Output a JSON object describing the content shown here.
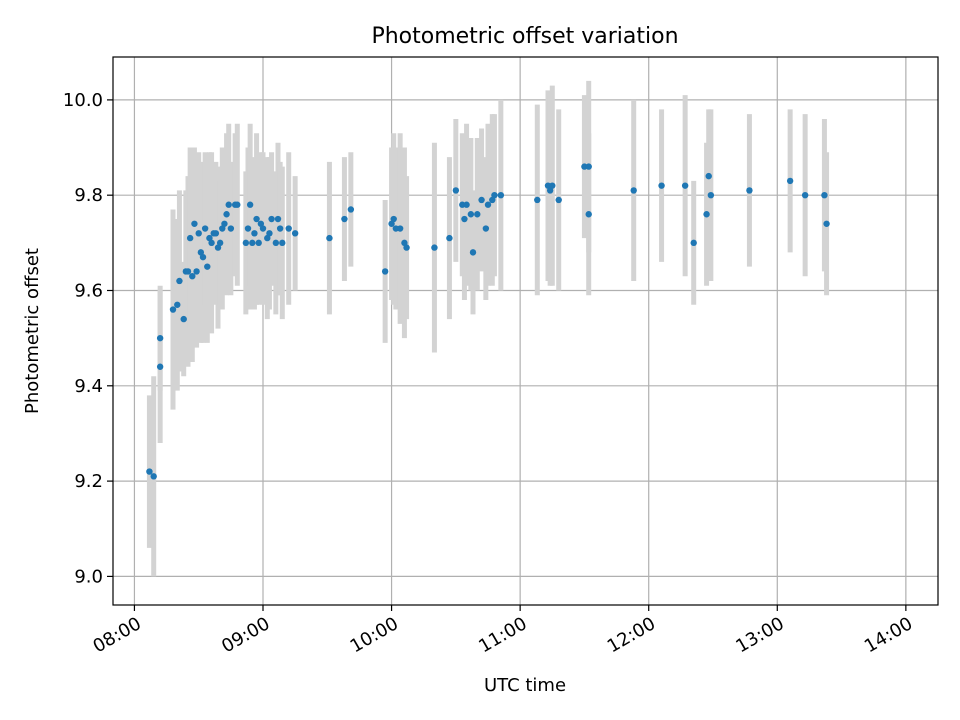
{
  "chart_data": {
    "type": "scatter",
    "title": "Photometric offset variation",
    "xlabel": "UTC time",
    "ylabel": "Photometric offset",
    "x_unit": "time",
    "xlim": [
      "07:50",
      "14:15"
    ],
    "ylim": [
      8.94,
      10.09
    ],
    "x_ticks": [
      "08:00",
      "09:00",
      "10:00",
      "11:00",
      "12:00",
      "13:00",
      "14:00"
    ],
    "y_ticks": [
      9.0,
      9.2,
      9.4,
      9.6,
      9.8,
      10.0
    ],
    "y_tick_labels": [
      "9.0",
      "9.2",
      "9.4",
      "9.6",
      "9.8",
      "10.0"
    ],
    "grid": true,
    "colors": {
      "marker": "#1f77b4",
      "errorbar": "#d3d3d3"
    },
    "series": [
      {
        "points": [
          {
            "x": "08:07",
            "y": 9.22,
            "err": 0.16
          },
          {
            "x": "08:09",
            "y": 9.21,
            "err": 0.21
          },
          {
            "x": "08:12",
            "y": 9.44,
            "err": 0.16
          },
          {
            "x": "08:12",
            "y": 9.5,
            "err": 0.11
          },
          {
            "x": "08:18",
            "y": 9.56,
            "err": 0.21
          },
          {
            "x": "08:20",
            "y": 9.57,
            "err": 0.18
          },
          {
            "x": "08:21",
            "y": 9.62,
            "err": 0.19
          },
          {
            "x": "08:23",
            "y": 9.54,
            "err": 0.12
          },
          {
            "x": "08:24",
            "y": 9.64,
            "err": 0.17
          },
          {
            "x": "08:25",
            "y": 9.64,
            "err": 0.2
          },
          {
            "x": "08:26",
            "y": 9.71,
            "err": 0.19
          },
          {
            "x": "08:27",
            "y": 9.63,
            "err": 0.18
          },
          {
            "x": "08:28",
            "y": 9.74,
            "err": 0.16
          },
          {
            "x": "08:29",
            "y": 9.64,
            "err": 0.16
          },
          {
            "x": "08:30",
            "y": 9.72,
            "err": 0.17
          },
          {
            "x": "08:31",
            "y": 9.68,
            "err": 0.19
          },
          {
            "x": "08:32",
            "y": 9.67,
            "err": 0.18
          },
          {
            "x": "08:33",
            "y": 9.73,
            "err": 0.16
          },
          {
            "x": "08:34",
            "y": 9.65,
            "err": 0.16
          },
          {
            "x": "08:35",
            "y": 9.71,
            "err": 0.18
          },
          {
            "x": "08:36",
            "y": 9.7,
            "err": 0.19
          },
          {
            "x": "08:37",
            "y": 9.72,
            "err": 0.14
          },
          {
            "x": "08:38",
            "y": 9.72,
            "err": 0.15
          },
          {
            "x": "08:39",
            "y": 9.69,
            "err": 0.17
          },
          {
            "x": "08:40",
            "y": 9.7,
            "err": 0.13
          },
          {
            "x": "08:41",
            "y": 9.73,
            "err": 0.17
          },
          {
            "x": "08:42",
            "y": 9.74,
            "err": 0.14
          },
          {
            "x": "08:43",
            "y": 9.76,
            "err": 0.17
          },
          {
            "x": "08:44",
            "y": 9.78,
            "err": 0.17
          },
          {
            "x": "08:45",
            "y": 9.73,
            "err": 0.14
          },
          {
            "x": "08:47",
            "y": 9.78,
            "err": 0.15
          },
          {
            "x": "08:48",
            "y": 9.78,
            "err": 0.17
          },
          {
            "x": "08:52",
            "y": 9.7,
            "err": 0.15
          },
          {
            "x": "08:53",
            "y": 9.73,
            "err": 0.17
          },
          {
            "x": "08:54",
            "y": 9.78,
            "err": 0.17
          },
          {
            "x": "08:55",
            "y": 9.7,
            "err": 0.14
          },
          {
            "x": "08:56",
            "y": 9.72,
            "err": 0.16
          },
          {
            "x": "08:57",
            "y": 9.75,
            "err": 0.18
          },
          {
            "x": "08:58",
            "y": 9.7,
            "err": 0.13
          },
          {
            "x": "08:59",
            "y": 9.74,
            "err": 0.15
          },
          {
            "x": "09:00",
            "y": 9.73,
            "err": 0.16
          },
          {
            "x": "09:02",
            "y": 9.71,
            "err": 0.17
          },
          {
            "x": "09:03",
            "y": 9.72,
            "err": 0.16
          },
          {
            "x": "09:04",
            "y": 9.75,
            "err": 0.14
          },
          {
            "x": "09:06",
            "y": 9.7,
            "err": 0.15
          },
          {
            "x": "09:07",
            "y": 9.75,
            "err": 0.16
          },
          {
            "x": "09:08",
            "y": 9.73,
            "err": 0.14
          },
          {
            "x": "09:09",
            "y": 9.7,
            "err": 0.16
          },
          {
            "x": "09:12",
            "y": 9.73,
            "err": 0.16
          },
          {
            "x": "09:15",
            "y": 9.72,
            "err": 0.12
          },
          {
            "x": "09:31",
            "y": 9.71,
            "err": 0.16
          },
          {
            "x": "09:38",
            "y": 9.75,
            "err": 0.13
          },
          {
            "x": "09:41",
            "y": 9.77,
            "err": 0.12
          },
          {
            "x": "09:57",
            "y": 9.64,
            "err": 0.15
          },
          {
            "x": "10:00",
            "y": 9.74,
            "err": 0.16
          },
          {
            "x": "10:01",
            "y": 9.75,
            "err": 0.18
          },
          {
            "x": "10:02",
            "y": 9.73,
            "err": 0.17
          },
          {
            "x": "10:04",
            "y": 9.73,
            "err": 0.2
          },
          {
            "x": "10:06",
            "y": 9.7,
            "err": 0.2
          },
          {
            "x": "10:07",
            "y": 9.69,
            "err": 0.15
          },
          {
            "x": "10:20",
            "y": 9.69,
            "err": 0.22
          },
          {
            "x": "10:27",
            "y": 9.71,
            "err": 0.17
          },
          {
            "x": "10:30",
            "y": 9.81,
            "err": 0.15
          },
          {
            "x": "10:33",
            "y": 9.78,
            "err": 0.15
          },
          {
            "x": "10:34",
            "y": 9.75,
            "err": 0.17
          },
          {
            "x": "10:35",
            "y": 9.78,
            "err": 0.17
          },
          {
            "x": "10:37",
            "y": 9.76,
            "err": 0.16
          },
          {
            "x": "10:38",
            "y": 9.68,
            "err": 0.13
          },
          {
            "x": "10:40",
            "y": 9.76,
            "err": 0.16
          },
          {
            "x": "10:42",
            "y": 9.79,
            "err": 0.15
          },
          {
            "x": "10:44",
            "y": 9.73,
            "err": 0.15
          },
          {
            "x": "10:45",
            "y": 9.78,
            "err": 0.17
          },
          {
            "x": "10:47",
            "y": 9.79,
            "err": 0.18
          },
          {
            "x": "10:48",
            "y": 9.8,
            "err": 0.17
          },
          {
            "x": "10:51",
            "y": 9.8,
            "err": 0.2
          },
          {
            "x": "11:08",
            "y": 9.79,
            "err": 0.2
          },
          {
            "x": "11:13",
            "y": 9.82,
            "err": 0.2
          },
          {
            "x": "11:14",
            "y": 9.81,
            "err": 0.2
          },
          {
            "x": "11:15",
            "y": 9.82,
            "err": 0.21
          },
          {
            "x": "11:18",
            "y": 9.79,
            "err": 0.19
          },
          {
            "x": "11:30",
            "y": 9.86,
            "err": 0.15
          },
          {
            "x": "11:32",
            "y": 9.76,
            "err": 0.17
          },
          {
            "x": "11:32",
            "y": 9.86,
            "err": 0.18
          },
          {
            "x": "11:53",
            "y": 9.81,
            "err": 0.19
          },
          {
            "x": "12:06",
            "y": 9.82,
            "err": 0.16
          },
          {
            "x": "12:17",
            "y": 9.82,
            "err": 0.19
          },
          {
            "x": "12:21",
            "y": 9.7,
            "err": 0.13
          },
          {
            "x": "12:27",
            "y": 9.76,
            "err": 0.15
          },
          {
            "x": "12:28",
            "y": 9.84,
            "err": 0.14
          },
          {
            "x": "12:29",
            "y": 9.8,
            "err": 0.18
          },
          {
            "x": "12:47",
            "y": 9.81,
            "err": 0.16
          },
          {
            "x": "13:06",
            "y": 9.83,
            "err": 0.15
          },
          {
            "x": "13:13",
            "y": 9.8,
            "err": 0.17
          },
          {
            "x": "13:22",
            "y": 9.8,
            "err": 0.16
          },
          {
            "x": "13:23",
            "y": 9.74,
            "err": 0.15
          }
        ]
      }
    ]
  }
}
